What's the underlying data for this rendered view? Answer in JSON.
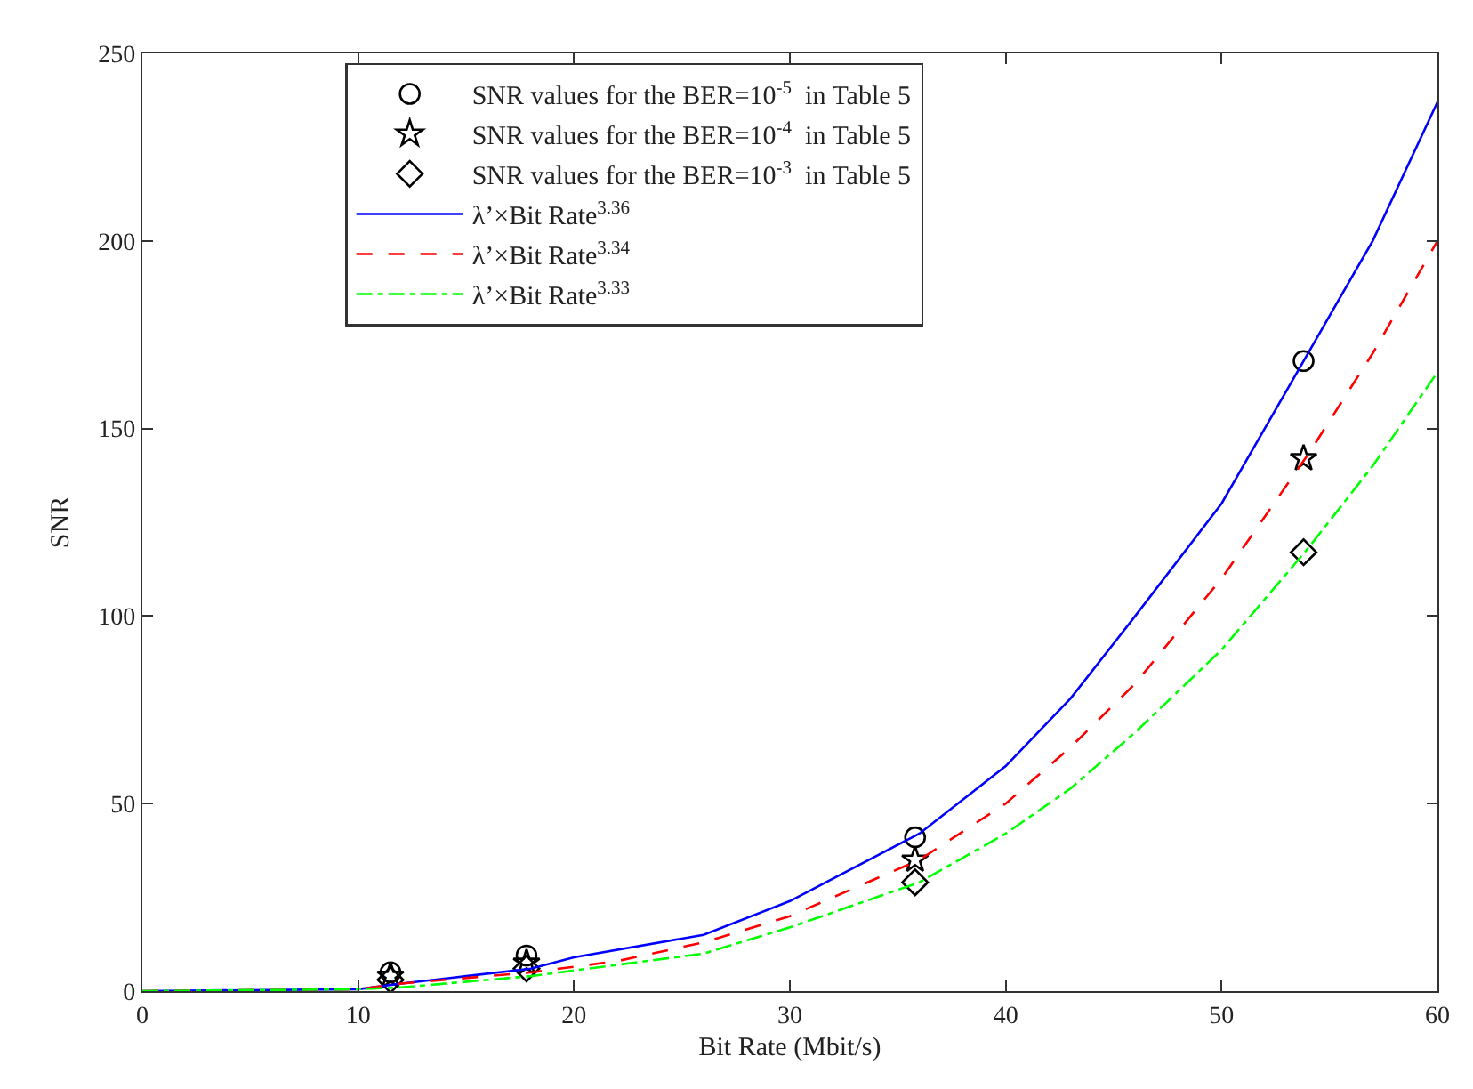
{
  "chart_data": {
    "type": "scatter",
    "xlabel": "Bit Rate (Mbit/s)",
    "ylabel": "SNR",
    "xlim": [
      0,
      60
    ],
    "xticks": [
      0,
      10,
      20,
      30,
      40,
      50,
      60
    ],
    "ylim": [
      0,
      250
    ],
    "yticks": [
      0,
      50,
      100,
      150,
      200,
      250
    ],
    "grid": false,
    "legend": "top",
    "series": [
      {
        "name": "SNR values for the BER=10$^{-5}$  in Table 5",
        "marker": "circle",
        "color": "#000000",
        "x": [
          11.5,
          17.8,
          35.8,
          53.8
        ],
        "values": [
          5,
          9.5,
          41,
          168
        ]
      },
      {
        "name": "SNR values for the BER=10$^{-4}$  in Table 5",
        "marker": "star",
        "color": "#000000",
        "x": [
          11.5,
          17.8,
          35.8,
          53.8
        ],
        "values": [
          4,
          7.5,
          35,
          142
        ]
      },
      {
        "name": "SNR values for the BER=10$^{-3}$  in Table 5",
        "marker": "diamond",
        "color": "#000000",
        "x": [
          11.5,
          17.8,
          35.8,
          53.8
        ],
        "values": [
          3,
          6,
          29,
          117
        ]
      },
      {
        "name": "λ’×Bit Rate$^{3.36}$",
        "type": "line",
        "marker": "none",
        "line_style": "solid",
        "color": "#0000ff",
        "x": [
          0,
          10,
          12,
          15,
          18,
          20,
          26,
          30,
          36,
          40,
          43,
          46,
          50,
          54,
          57,
          60
        ],
        "values": [
          0,
          0.5,
          2,
          4,
          6,
          9,
          15,
          24,
          42,
          60,
          78,
          100,
          130,
          170,
          200,
          237
        ]
      },
      {
        "name": "λ’×Bit Rate$^{3.34}$",
        "type": "line",
        "marker": "none",
        "line_style": "dashed",
        "color": "#ff0000",
        "x": [
          0,
          10,
          12,
          18,
          22,
          26,
          30,
          36,
          40,
          43,
          46,
          50,
          54,
          57,
          60
        ],
        "values": [
          0,
          0.5,
          2,
          5,
          8,
          13,
          20,
          35,
          50,
          65,
          82,
          110,
          143,
          170,
          200
        ]
      },
      {
        "name": "λ’×Bit Rate$^{3.33}$",
        "type": "line",
        "marker": "none",
        "line_style": "dashdot",
        "color": "#00ff00",
        "x": [
          0,
          10,
          12,
          18,
          22,
          26,
          30,
          36,
          40,
          43,
          46,
          50,
          54,
          57,
          60
        ],
        "values": [
          0,
          0.5,
          1,
          4,
          7,
          10,
          17,
          29,
          42,
          54,
          69,
          91,
          118,
          140,
          165
        ]
      }
    ]
  }
}
